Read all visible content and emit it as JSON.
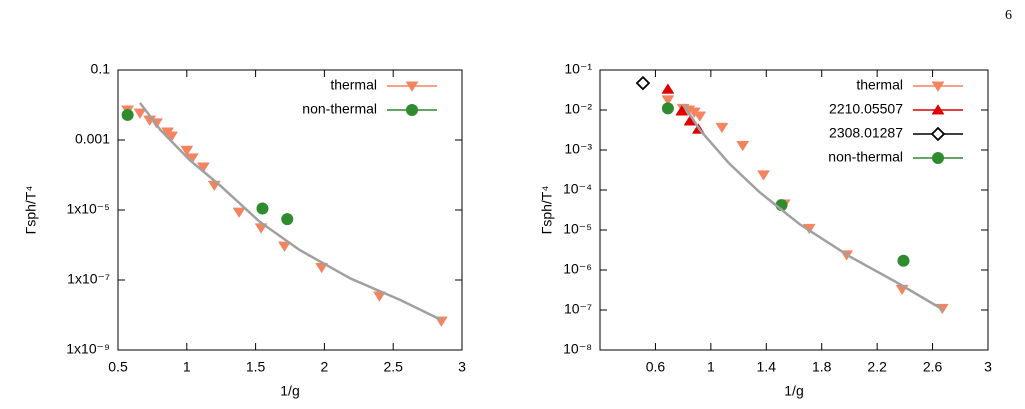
{
  "page_number": "6",
  "chart_data": [
    {
      "type": "scatter",
      "x_label": "1/g",
      "y_label": "Γsph/T⁴",
      "ylog": true,
      "xlim": [
        0.5,
        3
      ],
      "xticks": [
        0.5,
        1,
        1.5,
        2,
        2.5,
        3
      ],
      "ylim": [
        1e-09,
        0.1
      ],
      "yticks": [
        0.1,
        0.001,
        {
          "value": 1e-05,
          "label": "1x10⁻⁵"
        },
        {
          "value": 1e-07,
          "label": "1x10⁻⁷"
        },
        {
          "value": 1e-09,
          "label": "1x10⁻⁹"
        }
      ],
      "series": [
        {
          "name": "thermal",
          "color": "#f4845f",
          "marker": "triangle-down",
          "x": [
            0.57,
            0.66,
            0.73,
            0.78,
            0.86,
            0.89,
            1.0,
            1.04,
            1.12,
            1.2,
            1.38,
            1.54,
            1.71,
            1.98,
            2.4,
            2.85
          ],
          "values": [
            0.0072,
            0.0059,
            0.0037,
            0.0031,
            0.0017,
            0.0013,
            0.00051,
            0.00031,
            0.00017,
            5.1e-05,
            8.7e-06,
            3.1e-06,
            9.3e-07,
            2.3e-07,
            3.5e-08,
            6.7e-09
          ]
        },
        {
          "name": "non-thermal",
          "color": "#2e8b2e",
          "marker": "circle",
          "x": [
            0.57,
            1.55,
            1.73
          ],
          "values": [
            0.0052,
            1.1e-05,
            5.5e-06
          ]
        },
        {
          "color": "#a0a0a0",
          "marker": "line",
          "x": [
            0.66,
            0.81,
            1.02,
            1.24,
            1.53,
            1.82,
            2.19,
            2.55,
            2.85
          ],
          "values": [
            0.0115,
            0.0019,
            0.00027,
            5.1e-05,
            4.6e-06,
            7.2e-07,
            1.1e-07,
            2.7e-08,
            7.2e-09
          ]
        }
      ]
    },
    {
      "type": "scatter",
      "x_label": "1/g",
      "y_label": "Γsph/T⁴",
      "ylog": true,
      "xlim": [
        0.2,
        3
      ],
      "xticks": [
        0.6,
        1,
        1.4,
        1.8,
        2.2,
        2.6,
        3
      ],
      "ylim": [
        1e-08,
        0.1
      ],
      "yticks": [
        {
          "value": 0.1,
          "label": "10⁻¹"
        },
        {
          "value": 0.01,
          "label": "10⁻²"
        },
        {
          "value": 0.001,
          "label": "10⁻³"
        },
        {
          "value": 0.0001,
          "label": "10⁻⁴"
        },
        {
          "value": 1e-05,
          "label": "10⁻⁵"
        },
        {
          "value": 1e-06,
          "label": "10⁻⁶"
        },
        {
          "value": 1e-07,
          "label": "10⁻⁷"
        },
        {
          "value": 1e-08,
          "label": "10⁻⁸"
        }
      ],
      "series": [
        {
          "name": "thermal",
          "color": "#f4845f",
          "marker": "triangle-down",
          "x": [
            0.69,
            0.8,
            0.84,
            0.88,
            0.92,
            1.08,
            1.23,
            1.38,
            1.53,
            1.71,
            1.98,
            2.38,
            2.67
          ],
          "values": [
            0.018,
            0.011,
            0.01,
            0.0089,
            0.0071,
            0.0037,
            0.0013,
            0.00024,
            4.5e-05,
            1.1e-05,
            2.4e-06,
            3.3e-07,
            1.1e-07
          ]
        },
        {
          "name": "2210.05507",
          "color": "#e00000",
          "marker": "triangle-up",
          "x": [
            0.69,
            0.79,
            0.85,
            0.91
          ],
          "values": [
            0.033,
            0.0094,
            0.0053,
            0.0033
          ]
        },
        {
          "name": "2308.01287",
          "color": "#000000",
          "marker": "diamond-open",
          "x": [
            0.51
          ],
          "values": [
            0.047
          ]
        },
        {
          "name": "non-thermal",
          "color": "#2e8b2e",
          "marker": "circle",
          "x": [
            0.69,
            1.51,
            2.39
          ],
          "values": [
            0.011,
            4.2e-05,
            1.7e-06
          ]
        },
        {
          "color": "#a0a0a0",
          "marker": "line",
          "x": [
            0.8,
            0.92,
            1.13,
            1.35,
            1.64,
            2.0,
            2.35,
            2.68
          ],
          "values": [
            0.014,
            0.0032,
            0.00047,
            8.9e-05,
            1.4e-05,
            2.2e-06,
            4.7e-07,
            1e-07
          ]
        }
      ]
    }
  ]
}
